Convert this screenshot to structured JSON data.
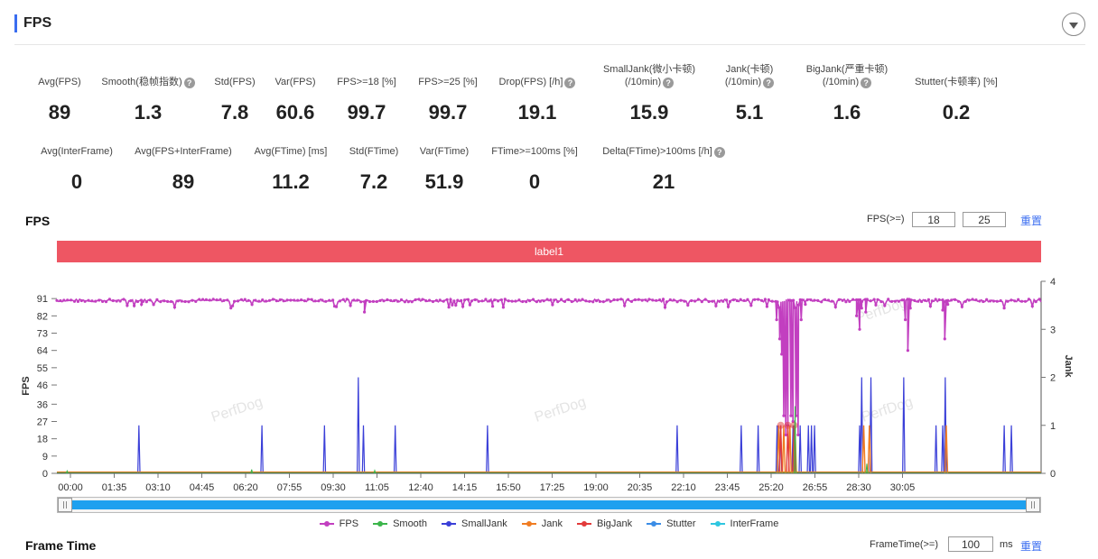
{
  "header": {
    "title": "FPS"
  },
  "metrics_row1": [
    {
      "label": "Avg(FPS)",
      "value": "89",
      "help": false,
      "cx": 66
    },
    {
      "label": "Smooth(稳帧指数)",
      "value": "1.3",
      "help": true,
      "cx": 164
    },
    {
      "label": "Std(FPS)",
      "value": "7.8",
      "help": false,
      "cx": 260
    },
    {
      "label": "Var(FPS)",
      "value": "60.6",
      "help": false,
      "cx": 327
    },
    {
      "label": "FPS>=18 [%]",
      "value": "99.7",
      "help": false,
      "cx": 406
    },
    {
      "label": "FPS>=25 [%]",
      "value": "99.7",
      "help": false,
      "cx": 496
    },
    {
      "label": "Drop(FPS) [/h]",
      "value": "19.1",
      "help": true,
      "cx": 595
    }
  ],
  "metrics_row1b": [
    {
      "label1": "SmallJank(微小卡顿)",
      "label2": "(/10min)",
      "value": "15.9",
      "cx": 719
    },
    {
      "label1": "Jank(卡顿)",
      "label2": "(/10min)",
      "value": "5.1",
      "cx": 830
    },
    {
      "label1": "BigJank(严重卡顿)",
      "label2": "(/10min)",
      "value": "1.6",
      "cx": 938
    },
    {
      "label1": "",
      "label2": "Stutter(卡顿率) [%]",
      "value": "0.2",
      "cx": 1059
    }
  ],
  "metrics_row2": [
    {
      "label": "Avg(InterFrame)",
      "value": "0",
      "help": false,
      "cx": 85
    },
    {
      "label": "Avg(FPS+InterFrame)",
      "value": "89",
      "help": false,
      "cx": 203
    },
    {
      "label": "Avg(FTime) [ms]",
      "value": "11.2",
      "help": false,
      "cx": 322
    },
    {
      "label": "Std(FTime)",
      "value": "7.2",
      "help": false,
      "cx": 414
    },
    {
      "label": "Var(FTime)",
      "value": "51.9",
      "help": false,
      "cx": 492
    },
    {
      "label": "FTime>=100ms [%]",
      "value": "0",
      "help": false,
      "cx": 592
    },
    {
      "label": "Delta(FTime)>100ms [/h]",
      "value": "21",
      "help": true,
      "cx": 735
    }
  ],
  "fps_section": {
    "title": "FPS",
    "threshold_label": "FPS(>=)",
    "threshold1": "18",
    "threshold2": "25",
    "reset_label": "重置",
    "label_bar": "label1"
  },
  "watermark": "PerfDog",
  "legend": [
    {
      "name": "FPS",
      "color": "#c23fc0"
    },
    {
      "name": "Smooth",
      "color": "#3bb54a"
    },
    {
      "name": "SmallJank",
      "color": "#3a3fd8"
    },
    {
      "name": "Jank",
      "color": "#f07c22"
    },
    {
      "name": "BigJank",
      "color": "#e23a3a"
    },
    {
      "name": "Stutter",
      "color": "#3b8de6"
    },
    {
      "name": "InterFrame",
      "color": "#2ec6e0"
    }
  ],
  "frame_time_section": {
    "title": "Frame Time",
    "threshold_label": "FrameTime(>=)",
    "threshold_value": "100",
    "unit": "ms",
    "reset_label": "重置"
  },
  "chart_data": {
    "type": "line",
    "ylabel": "FPS",
    "y2label": "Jank",
    "yticks": [
      0,
      9,
      18,
      27,
      36,
      46,
      55,
      64,
      73,
      82,
      91
    ],
    "y2ticks": [
      0,
      1,
      2,
      3,
      4
    ],
    "ylim": [
      0,
      100
    ],
    "y2lim": [
      0,
      4
    ],
    "x_ticks": [
      "00:00",
      "01:35",
      "03:10",
      "04:45",
      "06:20",
      "07:55",
      "09:30",
      "11:05",
      "12:40",
      "14:15",
      "15:50",
      "17:25",
      "19:00",
      "20:35",
      "22:10",
      "23:45",
      "25:20",
      "26:55",
      "28:30",
      "30:05"
    ],
    "x_range_seconds": [
      0,
      1920
    ],
    "fps_baseline": 90,
    "fps_dips": [
      {
        "t": 1404,
        "v": 80
      },
      {
        "t": 1410,
        "v": 70
      },
      {
        "t": 1414,
        "v": 62
      },
      {
        "t": 1418,
        "v": 30
      },
      {
        "t": 1422,
        "v": 20
      },
      {
        "t": 1426,
        "v": 25
      },
      {
        "t": 1432,
        "v": 30
      },
      {
        "t": 1436,
        "v": 27
      },
      {
        "t": 1442,
        "v": 30
      },
      {
        "t": 1446,
        "v": 20
      },
      {
        "t": 1452,
        "v": 80
      },
      {
        "t": 1460,
        "v": 88
      },
      {
        "t": 1560,
        "v": 82
      },
      {
        "t": 1566,
        "v": 75
      },
      {
        "t": 1570,
        "v": 86
      },
      {
        "t": 1578,
        "v": 84
      },
      {
        "t": 1655,
        "v": 80
      },
      {
        "t": 1660,
        "v": 64
      },
      {
        "t": 1665,
        "v": 86
      },
      {
        "t": 1728,
        "v": 85
      },
      {
        "t": 1732,
        "v": 70
      },
      {
        "t": 1738,
        "v": 88
      },
      {
        "t": 165,
        "v": 88
      },
      {
        "t": 600,
        "v": 84
      },
      {
        "t": 850,
        "v": 87
      }
    ],
    "small_jank": [
      {
        "t": 160,
        "v": 1
      },
      {
        "t": 400,
        "v": 1
      },
      {
        "t": 522,
        "v": 1
      },
      {
        "t": 588,
        "v": 2
      },
      {
        "t": 598,
        "v": 1
      },
      {
        "t": 660,
        "v": 1
      },
      {
        "t": 840,
        "v": 1
      },
      {
        "t": 1210,
        "v": 1
      },
      {
        "t": 1335,
        "v": 1
      },
      {
        "t": 1368,
        "v": 1
      },
      {
        "t": 1405,
        "v": 1
      },
      {
        "t": 1412,
        "v": 1
      },
      {
        "t": 1436,
        "v": 1
      },
      {
        "t": 1450,
        "v": 1
      },
      {
        "t": 1466,
        "v": 1
      },
      {
        "t": 1472,
        "v": 1
      },
      {
        "t": 1478,
        "v": 1
      },
      {
        "t": 1566,
        "v": 1
      },
      {
        "t": 1570,
        "v": 2
      },
      {
        "t": 1588,
        "v": 2
      },
      {
        "t": 1652,
        "v": 2
      },
      {
        "t": 1715,
        "v": 1
      },
      {
        "t": 1728,
        "v": 1
      },
      {
        "t": 1733,
        "v": 2
      },
      {
        "t": 1848,
        "v": 1
      },
      {
        "t": 1862,
        "v": 1
      }
    ],
    "jank": [
      {
        "t": 1408,
        "v": 1
      },
      {
        "t": 1418,
        "v": 1
      },
      {
        "t": 1430,
        "v": 1
      },
      {
        "t": 1440,
        "v": 1
      },
      {
        "t": 1574,
        "v": 1
      },
      {
        "t": 1585,
        "v": 1
      },
      {
        "t": 1735,
        "v": 1
      }
    ],
    "big_jank": [
      {
        "t": 1412,
        "v": 1
      },
      {
        "t": 1426,
        "v": 1
      },
      {
        "t": 1438,
        "v": 1
      }
    ],
    "smooth_spikes": [
      {
        "t": 20,
        "v": 0.05
      },
      {
        "t": 380,
        "v": 0.08
      },
      {
        "t": 620,
        "v": 0.06
      },
      {
        "t": 1440,
        "v": 1.4
      },
      {
        "t": 1580,
        "v": 0.2
      }
    ]
  }
}
